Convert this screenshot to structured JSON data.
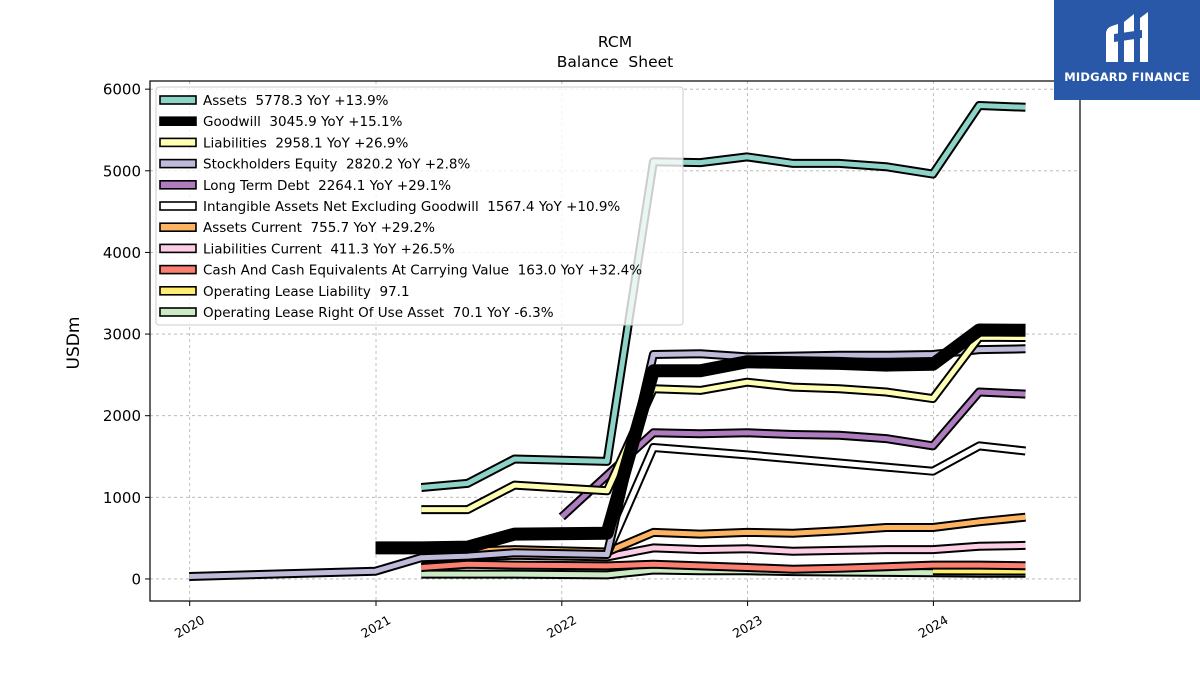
{
  "chart_data": {
    "type": "line",
    "title": "RCM",
    "subtitle": "Balance  Sheet",
    "ylabel": "USDm",
    "xlabel": "",
    "xlim": [
      "2019-10-15",
      "2024-10-15"
    ],
    "ylim": [
      -270,
      6100
    ],
    "xticks": [
      "2020",
      "2021",
      "2022",
      "2023",
      "2024"
    ],
    "yticks": [
      0,
      1000,
      2000,
      3000,
      4000,
      5000,
      6000
    ],
    "grid": true,
    "legend_position": "top-left",
    "series": [
      {
        "name": "Assets  5778.3 YoY +13.9%",
        "color": "#8dd3c7",
        "width": 5,
        "x": [
          "2021-03-31",
          "2021-06-30",
          "2021-09-30",
          "2022-03-31",
          "2022-06-30",
          "2022-09-30",
          "2022-12-31",
          "2023-03-31",
          "2023-06-30",
          "2023-09-30",
          "2023-12-31",
          "2024-03-31",
          "2024-06-30"
        ],
        "y": [
          1120,
          1170,
          1470,
          1440,
          5110,
          5100,
          5170,
          5090,
          5090,
          5050,
          4960,
          5800,
          5778
        ]
      },
      {
        "name": "Goodwill  3045.9 YoY +15.1%",
        "color": "#000000",
        "width": 9,
        "x": [
          "2020-12-31",
          "2021-03-31",
          "2021-06-30",
          "2021-09-30",
          "2022-03-31",
          "2022-06-30",
          "2022-09-30",
          "2022-12-31",
          "2023-03-31",
          "2023-06-30",
          "2023-09-30",
          "2023-12-31",
          "2024-03-31",
          "2024-06-30"
        ],
        "y": [
          380,
          380,
          390,
          550,
          560,
          2550,
          2550,
          2660,
          2650,
          2640,
          2620,
          2630,
          3050,
          3046
        ]
      },
      {
        "name": "Liabilities  2958.1 YoY +26.9%",
        "color": "#ffffb3",
        "width": 5,
        "x": [
          "2021-03-31",
          "2021-06-30",
          "2021-09-30",
          "2022-03-31",
          "2022-06-30",
          "2022-09-30",
          "2022-12-31",
          "2023-03-31",
          "2023-06-30",
          "2023-09-30",
          "2023-12-31",
          "2024-03-31",
          "2024-06-30"
        ],
        "y": [
          850,
          850,
          1150,
          1080,
          2330,
          2310,
          2410,
          2350,
          2330,
          2290,
          2210,
          2960,
          2958
        ]
      },
      {
        "name": "Stockholders Equity  2820.2 YoY +2.8%",
        "color": "#bebada",
        "width": 5,
        "x": [
          "2019-12-31",
          "2020-12-31",
          "2021-03-31",
          "2021-06-30",
          "2021-09-30",
          "2022-03-31",
          "2022-06-30",
          "2022-09-30",
          "2022-12-31",
          "2023-03-31",
          "2023-06-30",
          "2023-09-30",
          "2023-12-31",
          "2024-03-31",
          "2024-06-30"
        ],
        "y": [
          30,
          95,
          260,
          280,
          320,
          300,
          2750,
          2760,
          2720,
          2730,
          2740,
          2740,
          2750,
          2810,
          2820
        ]
      },
      {
        "name": "Long Term Debt  2264.1 YoY +29.1%",
        "color": "#b07cc0",
        "width": 5,
        "x": [
          "2022-01-01",
          "2022-06-30",
          "2022-09-30",
          "2022-12-31",
          "2023-03-31",
          "2023-06-30",
          "2023-09-30",
          "2023-12-31",
          "2024-03-31",
          "2024-06-30"
        ],
        "y": [
          760,
          1790,
          1780,
          1790,
          1770,
          1760,
          1720,
          1630,
          2290,
          2264
        ]
      },
      {
        "name": "Intangible Assets Net Excluding Goodwill  1567.4 YoY +10.9%",
        "color": "#ffffff",
        "width": 5,
        "x": [
          "2022-03-31",
          "2022-06-30",
          "2022-12-31",
          "2023-06-30",
          "2023-09-30",
          "2023-12-31",
          "2024-03-31",
          "2024-06-30"
        ],
        "y": [
          310,
          1610,
          1520,
          1420,
          1370,
          1320,
          1630,
          1567
        ]
      },
      {
        "name": "Assets Current  755.7 YoY +29.2%",
        "color": "#fdb462",
        "width": 5,
        "x": [
          "2021-03-31",
          "2021-06-30",
          "2021-09-30",
          "2022-03-31",
          "2022-06-30",
          "2022-09-30",
          "2022-12-31",
          "2023-03-31",
          "2023-06-30",
          "2023-09-30",
          "2023-12-31",
          "2024-03-31",
          "2024-06-30"
        ],
        "y": [
          300,
          340,
          360,
          330,
          570,
          550,
          570,
          560,
          590,
          630,
          630,
          700,
          756
        ]
      },
      {
        "name": "Liabilities Current  411.3 YoY +26.5%",
        "color": "#fccde5",
        "width": 5,
        "x": [
          "2021-03-31",
          "2021-06-30",
          "2021-09-30",
          "2022-03-31",
          "2022-06-30",
          "2022-09-30",
          "2022-12-31",
          "2023-03-31",
          "2023-06-30",
          "2023-09-30",
          "2023-12-31",
          "2024-03-31",
          "2024-06-30"
        ],
        "y": [
          250,
          270,
          290,
          270,
          380,
          360,
          370,
          340,
          350,
          360,
          360,
          400,
          411
        ]
      },
      {
        "name": "Cash And Cash Equivalents At Carrying Value  163.0 YoY +32.4%",
        "color": "#fb8072",
        "width": 5,
        "x": [
          "2021-03-31",
          "2021-06-30",
          "2021-09-30",
          "2022-03-31",
          "2022-06-30",
          "2022-09-30",
          "2022-12-31",
          "2023-03-31",
          "2023-06-30",
          "2023-09-30",
          "2023-12-31",
          "2024-03-31",
          "2024-06-30"
        ],
        "y": [
          140,
          180,
          170,
          160,
          180,
          160,
          140,
          120,
          130,
          150,
          170,
          170,
          163
        ]
      },
      {
        "name": "Operating Lease Liability  97.1",
        "color": "#ffed6f",
        "width": 5,
        "x": [
          "2023-12-31",
          "2024-06-30"
        ],
        "y": [
          100,
          97
        ]
      },
      {
        "name": "Operating Lease Right Of Use Asset  70.1 YoY -6.3%",
        "color": "#ccebc5",
        "width": 5,
        "x": [
          "2021-03-31",
          "2021-06-30",
          "2021-09-30",
          "2022-03-31",
          "2022-06-30",
          "2022-09-30",
          "2022-12-31",
          "2023-03-31",
          "2023-06-30",
          "2023-09-30",
          "2023-12-31",
          "2024-03-31",
          "2024-06-30"
        ],
        "y": [
          60,
          60,
          60,
          50,
          110,
          100,
          100,
          90,
          85,
          80,
          75,
          70,
          70
        ]
      }
    ]
  },
  "branding": {
    "logo_text": "MIDGARD FINANCE",
    "logo_color": "#2a58a8"
  }
}
